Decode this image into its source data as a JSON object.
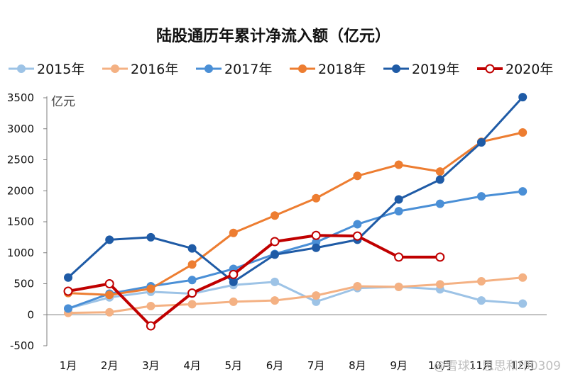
{
  "chart_data": {
    "type": "line",
    "title": "陆股通历年累计净流入额（亿元）",
    "ylabel": "亿元",
    "xlabel": "",
    "categories": [
      "1月",
      "2月",
      "3月",
      "4月",
      "5月",
      "6月",
      "7月",
      "8月",
      "9月",
      "10月",
      "11月",
      "12月"
    ],
    "ylim": [
      -500,
      3500
    ],
    "yticks": [
      -500,
      0,
      500,
      1000,
      1500,
      2000,
      2500,
      3000,
      3500
    ],
    "grid": false,
    "legend_position": "top",
    "series": [
      {
        "name": "2015年",
        "color": "#9dc3e6",
        "marker": "filled",
        "values": [
          100,
          280,
          370,
          340,
          480,
          530,
          210,
          430,
          450,
          410,
          230,
          180
        ]
      },
      {
        "name": "2016年",
        "color": "#f4b183",
        "marker": "filled",
        "values": [
          30,
          40,
          140,
          170,
          210,
          230,
          310,
          460,
          450,
          490,
          540,
          600
        ]
      },
      {
        "name": "2017年",
        "color": "#4a8fd6",
        "marker": "filled",
        "values": [
          100,
          340,
          460,
          560,
          740,
          980,
          1170,
          1460,
          1670,
          1790,
          1910,
          1990
        ]
      },
      {
        "name": "2018年",
        "color": "#ed7d31",
        "marker": "filled",
        "values": [
          350,
          320,
          420,
          810,
          1320,
          1600,
          1880,
          2240,
          2420,
          2310,
          2790,
          2940
        ]
      },
      {
        "name": "2019年",
        "color": "#1f5ba6",
        "marker": "filled",
        "values": [
          600,
          1210,
          1250,
          1070,
          530,
          970,
          1080,
          1210,
          1860,
          2180,
          2780,
          3510
        ]
      },
      {
        "name": "2020年",
        "color": "#c00000",
        "marker": "hollow",
        "values": [
          380,
          500,
          -180,
          350,
          650,
          1180,
          1280,
          1270,
          930,
          930,
          null,
          null
        ]
      }
    ]
  },
  "watermark": "@雪球：思思和印0309"
}
